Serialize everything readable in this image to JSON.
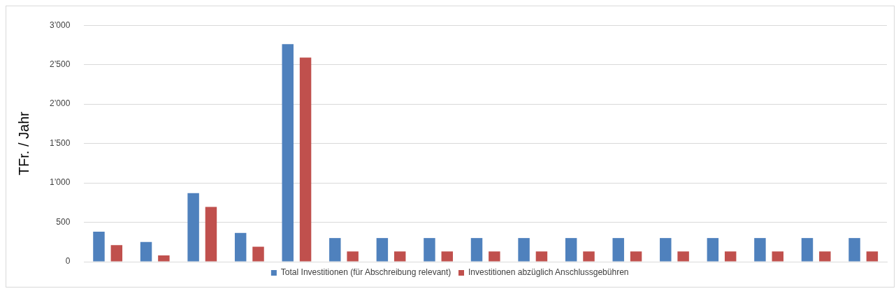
{
  "chart_data": {
    "type": "bar",
    "ylabel": "TFr. / Jahr",
    "categories": [
      null,
      null,
      null,
      null,
      null,
      null,
      null,
      null,
      null,
      null,
      null,
      null,
      null,
      null,
      null,
      null,
      null
    ],
    "series": [
      {
        "name": "Total Investitionen (für Abschreibung relevant)",
        "color": "#4f81bd",
        "values": [
          380,
          250,
          870,
          365,
          2760,
          300,
          300,
          300,
          300,
          300,
          300,
          300,
          300,
          300,
          300,
          300,
          300
        ]
      },
      {
        "name": "Investitionen abzüglich Anschlussgebühren",
        "color": "#c0504d",
        "values": [
          210,
          80,
          695,
          190,
          2590,
          130,
          130,
          130,
          130,
          130,
          130,
          130,
          130,
          130,
          130,
          130,
          130
        ]
      }
    ],
    "ylim": [
      0,
      3000
    ],
    "yticks": [
      0,
      500,
      {
        "value": 1000,
        "label": "1’000"
      },
      {
        "value": 1500,
        "label": "1’500"
      },
      {
        "value": 2000,
        "label": "2’000"
      },
      {
        "value": 2500,
        "label": "2’500"
      },
      {
        "value": 3000,
        "label": "3’000"
      }
    ],
    "grid": "y",
    "legend": "bottom"
  }
}
